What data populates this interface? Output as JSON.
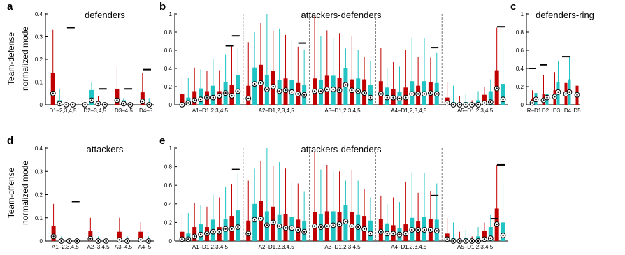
{
  "figure": {
    "row_labels": [
      "Team-defense",
      "Team-offense"
    ],
    "ylabel": "normalized mode"
  },
  "colors": {
    "dark": "#c00000",
    "light": "#22c3c3",
    "mean_bar": "#000000",
    "divider": "#777777"
  },
  "chart_data": [
    {
      "id": "a",
      "letter": "a",
      "title": "defenders",
      "type": "box",
      "ylim": [
        0,
        0.4
      ],
      "yticks": [
        "0",
        "0.1",
        "0.2",
        "0.3",
        "0.4"
      ],
      "group_labels": [
        "D1–2,3,4,5",
        "D2–3,4,5",
        "D3–4,5",
        "D4–5"
      ],
      "mean_lines": [
        0.34,
        0.07,
        0.07,
        0.155
      ],
      "groups": [
        {
          "pairs": [
            [
              0.33,
              0.14,
              0.05
            ],
            [
              0.07,
              0.02,
              0.005
            ],
            [
              0.01,
              0.0,
              0.0
            ],
            [
              0.01,
              0.0,
              0.0
            ]
          ]
        },
        {
          "pairs": [
            [
              0.01,
              0.0,
              0.0
            ],
            [
              0.1,
              0.065,
              0.02
            ],
            [
              0.04,
              0.01,
              0.005
            ],
            [
              0.01,
              0.0,
              0.0
            ]
          ]
        },
        {
          "pairs": [
            [
              0.165,
              0.07,
              0.02
            ],
            [
              0.03,
              0.02,
              0.005
            ],
            [
              0.01,
              0.0,
              0.0
            ]
          ]
        },
        {
          "pairs": [
            [
              0.14,
              0.055,
              0.015
            ],
            [
              0.03,
              0.01,
              0.0
            ]
          ]
        }
      ]
    },
    {
      "id": "b",
      "letter": "b",
      "title": "attackers-defenders",
      "type": "box",
      "ylim": [
        0,
        1.0
      ],
      "yticks": [
        "0",
        "0.2",
        "0.4",
        "0.6",
        "0.8",
        "1"
      ],
      "group_labels": [
        "A1–D1,2,3,4,5",
        "A2–D1,2,3,4,5",
        "A3–D1,2,3,4,5",
        "A4–D1,2,3,4,5",
        "A5–D1,2,3,4,5"
      ],
      "mean_lines": [
        [
          0.65,
          0.76
        ],
        [
          0.68
        ],
        [],
        [
          0.63
        ],
        [
          0.86
        ]
      ],
      "groups": [
        {
          "pairs": [
            [
              0.29,
              0.12,
              0.0
            ],
            [
              0.3,
              0.08,
              0.02
            ],
            [
              0.41,
              0.15,
              0.05
            ],
            [
              0.39,
              0.18,
              0.06
            ],
            [
              0.37,
              0.15,
              0.08
            ],
            [
              0.5,
              0.21,
              0.08
            ],
            [
              0.38,
              0.15,
              0.1
            ],
            [
              0.55,
              0.25,
              0.13
            ],
            [
              0.65,
              0.22,
              0.1
            ],
            [
              0.62,
              0.33,
              0.15
            ]
          ]
        },
        {
          "pairs": [
            [
              0.69,
              0.21,
              0.07
            ],
            [
              0.8,
              0.41,
              0.23
            ],
            [
              0.9,
              0.44,
              0.24
            ],
            [
              1.0,
              0.33,
              0.17
            ],
            [
              0.81,
              0.37,
              0.2
            ],
            [
              0.84,
              0.27,
              0.15
            ],
            [
              0.77,
              0.29,
              0.16
            ],
            [
              0.71,
              0.27,
              0.14
            ],
            [
              0.64,
              0.24,
              0.12
            ],
            [
              0.61,
              0.22,
              0.11
            ]
          ]
        },
        {
          "pairs": [
            [
              0.98,
              0.29,
              0.15
            ],
            [
              0.76,
              0.27,
              0.15
            ],
            [
              0.82,
              0.32,
              0.17
            ],
            [
              0.73,
              0.32,
              0.17
            ],
            [
              0.79,
              0.3,
              0.16
            ],
            [
              0.62,
              0.4,
              0.22
            ],
            [
              0.76,
              0.28,
              0.16
            ],
            [
              0.6,
              0.29,
              0.15
            ],
            [
              0.53,
              0.28,
              0.13
            ],
            [
              0.48,
              0.22,
              0.08
            ]
          ]
        },
        {
          "pairs": [
            [
              0.63,
              0.26,
              0.12
            ],
            [
              0.4,
              0.19,
              0.08
            ],
            [
              0.47,
              0.17,
              0.08
            ],
            [
              0.42,
              0.14,
              0.07
            ],
            [
              0.6,
              0.19,
              0.08
            ],
            [
              0.74,
              0.26,
              0.12
            ],
            [
              0.53,
              0.21,
              0.12
            ],
            [
              0.73,
              0.26,
              0.12
            ],
            [
              0.52,
              0.25,
              0.13
            ],
            [
              0.57,
              0.24,
              0.12
            ]
          ]
        },
        {
          "pairs": [
            [
              0.25,
              0.08,
              0.02
            ],
            [
              0.21,
              0.03,
              0.0
            ],
            [
              0.1,
              0.02,
              0.0
            ],
            [
              0.12,
              0.03,
              0.0
            ],
            [
              0.05,
              0.01,
              0.0
            ],
            [
              0.15,
              0.05,
              0.0
            ],
            [
              0.2,
              0.11,
              0.02
            ],
            [
              0.28,
              0.15,
              0.03
            ],
            [
              0.85,
              0.38,
              0.18
            ],
            [
              0.63,
              0.23,
              0.06
            ]
          ]
        }
      ]
    },
    {
      "id": "c",
      "letter": "c",
      "title": "defenders-ring",
      "type": "box",
      "ylim": [
        0,
        1.0
      ],
      "yticks": [
        "0",
        "0.2",
        "0.4",
        "0.6",
        "0.8",
        "1"
      ],
      "group_labels": [
        "R–D1",
        "D2",
        "D3",
        "D4",
        "D5"
      ],
      "mean_lines": [
        0.4,
        0.44,
        null,
        0.53,
        null
      ],
      "groups": [
        {
          "pairs": [
            [
              0.16,
              0.06,
              0.02
            ],
            [
              0.29,
              0.13,
              0.06
            ]
          ]
        },
        {
          "pairs": [
            [
              0.33,
              0.12,
              0.05
            ],
            [
              0.3,
              0.12,
              0.08
            ]
          ]
        },
        {
          "pairs": [
            [
              0.36,
              0.16,
              0.09
            ],
            [
              0.48,
              0.25,
              0.14
            ]
          ]
        },
        {
          "pairs": [
            [
              0.5,
              0.24,
              0.12
            ],
            [
              0.53,
              0.28,
              0.14
            ]
          ]
        },
        {
          "pairs": [
            [
              0.41,
              0.21,
              0.11
            ]
          ]
        }
      ]
    },
    {
      "id": "d",
      "letter": "d",
      "title": "attackers",
      "type": "box",
      "ylim": [
        0,
        0.4
      ],
      "yticks": [
        "0",
        "0.1",
        "0.2",
        "0.3",
        "0.4"
      ],
      "group_labels": [
        "A1–2,3,4,5",
        "A2–3,4,5",
        "A3–4,5",
        "A4–5"
      ],
      "mean_lines": [
        0.17,
        null,
        null,
        null
      ],
      "groups": [
        {
          "pairs": [
            [
              0.16,
              0.065,
              0.02
            ],
            [
              0.02,
              0.0,
              0.0
            ],
            [
              0.01,
              0.0,
              0.0
            ],
            [
              0.01,
              0.0,
              0.0
            ]
          ]
        },
        {
          "pairs": [
            [
              0.1,
              0.045,
              0.01
            ],
            [
              0.02,
              0.0,
              0.0
            ],
            [
              0.01,
              0.0,
              0.0
            ]
          ]
        },
        {
          "pairs": [
            [
              0.1,
              0.04,
              0.005
            ],
            [
              0.02,
              0.0,
              0.0
            ]
          ]
        },
        {
          "pairs": [
            [
              0.08,
              0.04,
              0.005
            ],
            [
              0.02,
              0.0,
              0.0
            ]
          ]
        }
      ]
    },
    {
      "id": "e",
      "letter": "e",
      "title": "attackers-defenders",
      "type": "box",
      "ylim": [
        0,
        1.0
      ],
      "yticks": [
        "0",
        "0.2",
        "0.4",
        "0.6",
        "0.8",
        "1"
      ],
      "group_labels": [
        "A1–D1,2,3,4,5",
        "A2–D1,2,3,4,5",
        "A3–D1,2,3,4,5",
        "A4–D1,2,3,4,5",
        "A5–D1,2,3,4,5"
      ],
      "mean_lines": [
        [
          0.77
        ],
        [],
        [],
        [
          0.49
        ],
        [
          0.24,
          0.82
        ]
      ],
      "groups": [
        {
          "pairs": [
            [
              0.29,
              0.1,
              0.02
            ],
            [
              0.3,
              0.08,
              0.02
            ],
            [
              0.41,
              0.15,
              0.05
            ],
            [
              0.39,
              0.18,
              0.07
            ],
            [
              0.37,
              0.15,
              0.08
            ],
            [
              0.5,
              0.23,
              0.1
            ],
            [
              0.47,
              0.15,
              0.1
            ],
            [
              0.58,
              0.24,
              0.13
            ],
            [
              0.61,
              0.27,
              0.13
            ],
            [
              0.74,
              0.33,
              0.15
            ]
          ]
        },
        {
          "pairs": [
            [
              0.65,
              0.22,
              0.08
            ],
            [
              0.78,
              0.4,
              0.23
            ],
            [
              0.86,
              0.43,
              0.24
            ],
            [
              1.0,
              0.32,
              0.17
            ],
            [
              0.81,
              0.37,
              0.2
            ],
            [
              0.85,
              0.28,
              0.16
            ],
            [
              0.78,
              0.29,
              0.14
            ],
            [
              0.64,
              0.26,
              0.14
            ],
            [
              0.62,
              0.23,
              0.12
            ],
            [
              0.53,
              0.21,
              0.1
            ]
          ]
        },
        {
          "pairs": [
            [
              0.96,
              0.31,
              0.16
            ],
            [
              0.77,
              0.29,
              0.15
            ],
            [
              0.82,
              0.32,
              0.16
            ],
            [
              0.75,
              0.32,
              0.17
            ],
            [
              0.75,
              0.31,
              0.18
            ],
            [
              0.65,
              0.39,
              0.21
            ],
            [
              0.76,
              0.31,
              0.16
            ],
            [
              0.65,
              0.28,
              0.15
            ],
            [
              0.56,
              0.27,
              0.13
            ],
            [
              0.47,
              0.22,
              0.08
            ]
          ]
        },
        {
          "pairs": [
            [
              0.49,
              0.24,
              0.1
            ],
            [
              0.4,
              0.19,
              0.08
            ],
            [
              0.47,
              0.17,
              0.08
            ],
            [
              0.42,
              0.14,
              0.07
            ],
            [
              0.64,
              0.18,
              0.08
            ],
            [
              0.74,
              0.25,
              0.12
            ],
            [
              0.52,
              0.21,
              0.12
            ],
            [
              0.73,
              0.26,
              0.12
            ],
            [
              0.54,
              0.24,
              0.12
            ],
            [
              0.62,
              0.23,
              0.11
            ]
          ]
        },
        {
          "pairs": [
            [
              0.25,
              0.08,
              0.02
            ],
            [
              0.2,
              0.03,
              0.0
            ],
            [
              0.1,
              0.02,
              0.0
            ],
            [
              0.12,
              0.03,
              0.0
            ],
            [
              0.05,
              0.01,
              0.0
            ],
            [
              0.15,
              0.05,
              0.0
            ],
            [
              0.2,
              0.11,
              0.02
            ],
            [
              0.28,
              0.15,
              0.03
            ],
            [
              0.82,
              0.35,
              0.18
            ],
            [
              0.63,
              0.2,
              0.06
            ]
          ]
        }
      ]
    }
  ]
}
